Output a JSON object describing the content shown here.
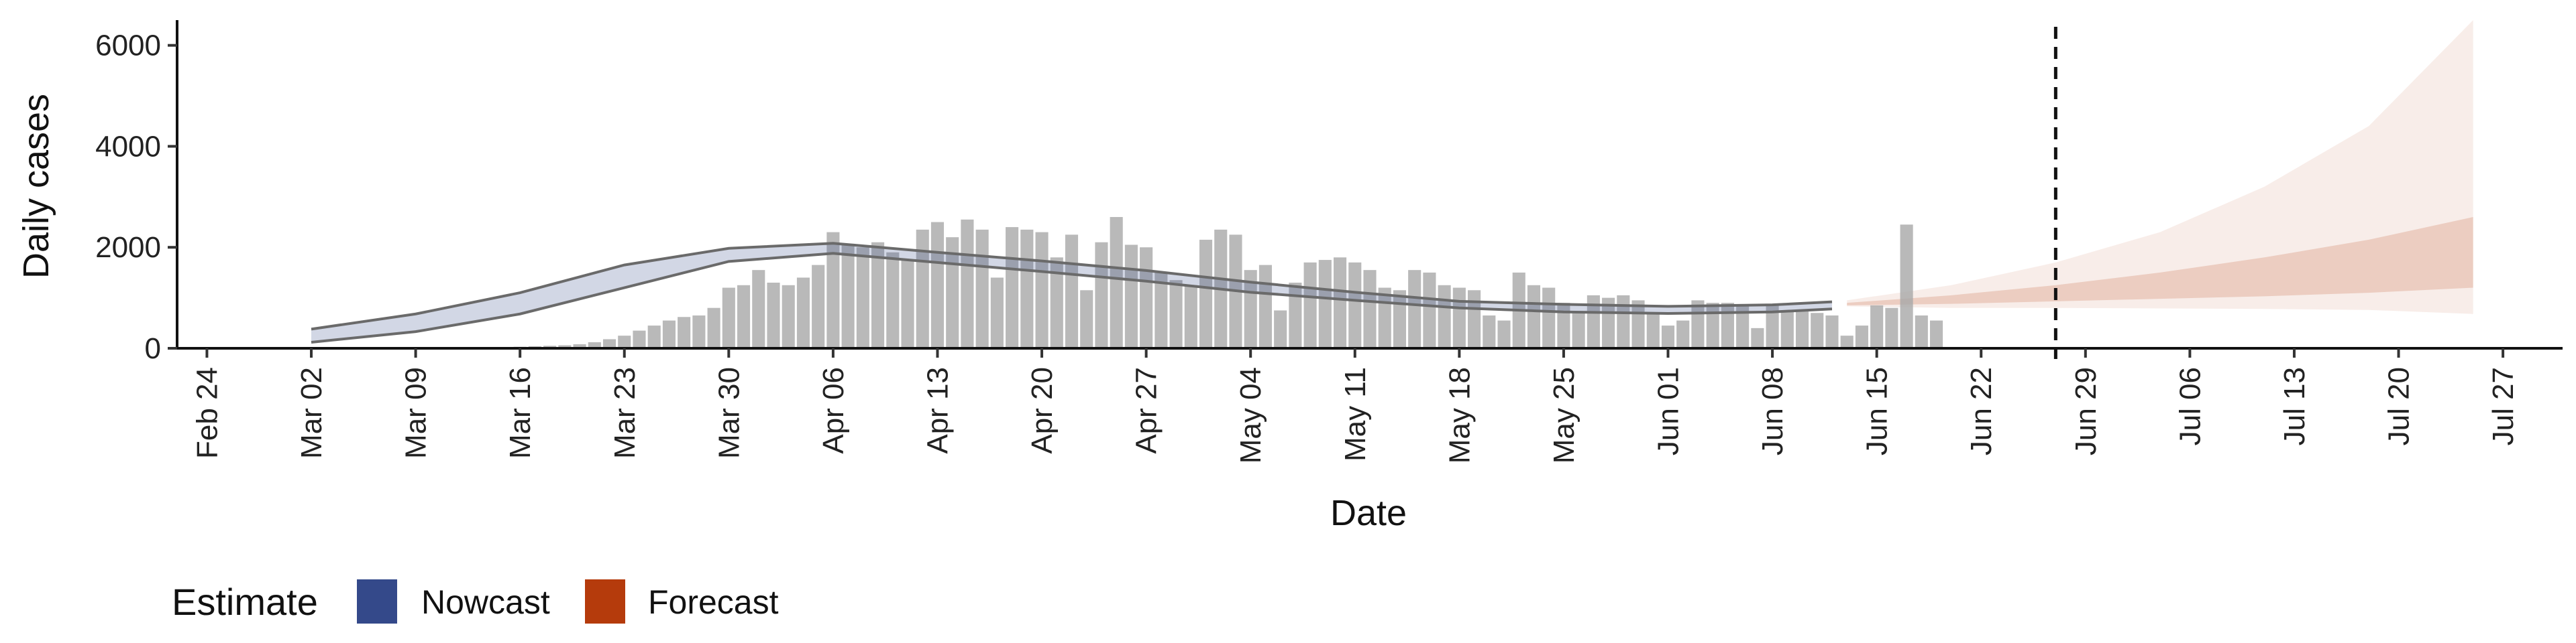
{
  "chart_data": {
    "type": "bar",
    "xlabel": "Date",
    "ylabel": "Daily cases",
    "ylim": [
      0,
      6500
    ],
    "yticks": [
      0,
      2000,
      4000,
      6000
    ],
    "ytick_labels": [
      "0",
      "2000",
      "4000",
      "6000"
    ],
    "xlim": [
      "2020-02-22",
      "2020-07-31"
    ],
    "xticks": [
      "2020-02-24",
      "2020-03-02",
      "2020-03-09",
      "2020-03-16",
      "2020-03-23",
      "2020-03-30",
      "2020-04-06",
      "2020-04-13",
      "2020-04-20",
      "2020-04-27",
      "2020-05-04",
      "2020-05-11",
      "2020-05-18",
      "2020-05-25",
      "2020-06-01",
      "2020-06-08",
      "2020-06-15",
      "2020-06-22",
      "2020-06-29",
      "2020-07-06",
      "2020-07-13",
      "2020-07-20",
      "2020-07-27"
    ],
    "xtick_labels": [
      "Feb 24",
      "Mar 02",
      "Mar 09",
      "Mar 16",
      "Mar 23",
      "Mar 30",
      "Apr 06",
      "Apr 13",
      "Apr 20",
      "Apr 27",
      "May 04",
      "May 11",
      "May 18",
      "May 25",
      "Jun 01",
      "Jun 08",
      "Jun 15",
      "Jun 22",
      "Jun 29",
      "Jul 06",
      "Jul 13",
      "Jul 20",
      "Jul 27"
    ],
    "grid": false,
    "cutoff_date": "2020-06-27",
    "bars_start": "2020-03-15",
    "bars": [
      20,
      30,
      40,
      50,
      60,
      80,
      120,
      180,
      250,
      350,
      450,
      550,
      620,
      650,
      800,
      1200,
      1250,
      1550,
      1300,
      1250,
      1400,
      1650,
      2300,
      2050,
      2000,
      2100,
      1900,
      1750,
      2350,
      2500,
      2200,
      2550,
      2350,
      1400,
      2400,
      2350,
      2300,
      1800,
      2250,
      1150,
      2100,
      2600,
      2050,
      2000,
      1500,
      1350,
      1250,
      2150,
      2350,
      2250,
      1550,
      1650,
      750,
      1300,
      1700,
      1750,
      1800,
      1700,
      1550,
      1200,
      1150,
      1550,
      1500,
      1250,
      1200,
      1150,
      650,
      550,
      1500,
      1250,
      1200,
      900,
      700,
      1050,
      1000,
      1050,
      950,
      700,
      450,
      550,
      950,
      900,
      900,
      850,
      400,
      850,
      750,
      750,
      700,
      650,
      250,
      450,
      850,
      800,
      2450,
      650,
      550
    ],
    "bands": [
      {
        "name": "Nowcast",
        "color": "#34498a",
        "x": [
          "2020-03-02",
          "2020-03-09",
          "2020-03-16",
          "2020-03-23",
          "2020-03-30",
          "2020-04-06",
          "2020-04-13",
          "2020-04-20",
          "2020-04-27",
          "2020-05-04",
          "2020-05-11",
          "2020-05-18",
          "2020-05-25",
          "2020-06-01",
          "2020-06-08",
          "2020-06-12"
        ],
        "median": [
          230,
          480,
          850,
          1380,
          1850,
          1980,
          1800,
          1620,
          1430,
          1220,
          1030,
          870,
          800,
          760,
          790,
          860
        ],
        "lower": [
          120,
          330,
          680,
          1200,
          1720,
          1880,
          1700,
          1520,
          1330,
          1110,
          950,
          800,
          720,
          690,
          720,
          780
        ],
        "upper": [
          380,
          680,
          1100,
          1650,
          1980,
          2080,
          1900,
          1730,
          1540,
          1310,
          1110,
          930,
          870,
          830,
          860,
          920
        ]
      },
      {
        "name": "Forecast",
        "color": "#b53b0c",
        "x": [
          "2020-06-13",
          "2020-06-20",
          "2020-06-27",
          "2020-07-04",
          "2020-07-11",
          "2020-07-18",
          "2020-07-25"
        ],
        "lower50": [
          850,
          880,
          930,
          980,
          1030,
          1100,
          1200
        ],
        "upper50": [
          900,
          1050,
          1250,
          1500,
          1800,
          2150,
          2600
        ],
        "lower90": [
          830,
          800,
          800,
          790,
          780,
          760,
          680
        ],
        "upper90": [
          950,
          1250,
          1700,
          2300,
          3200,
          4400,
          6500
        ]
      }
    ],
    "legend": {
      "title": "Estimate",
      "position": "bottom-left",
      "entries": [
        {
          "label": "Nowcast",
          "color": "#34498a"
        },
        {
          "label": "Forecast",
          "color": "#b53b0c"
        }
      ]
    }
  }
}
